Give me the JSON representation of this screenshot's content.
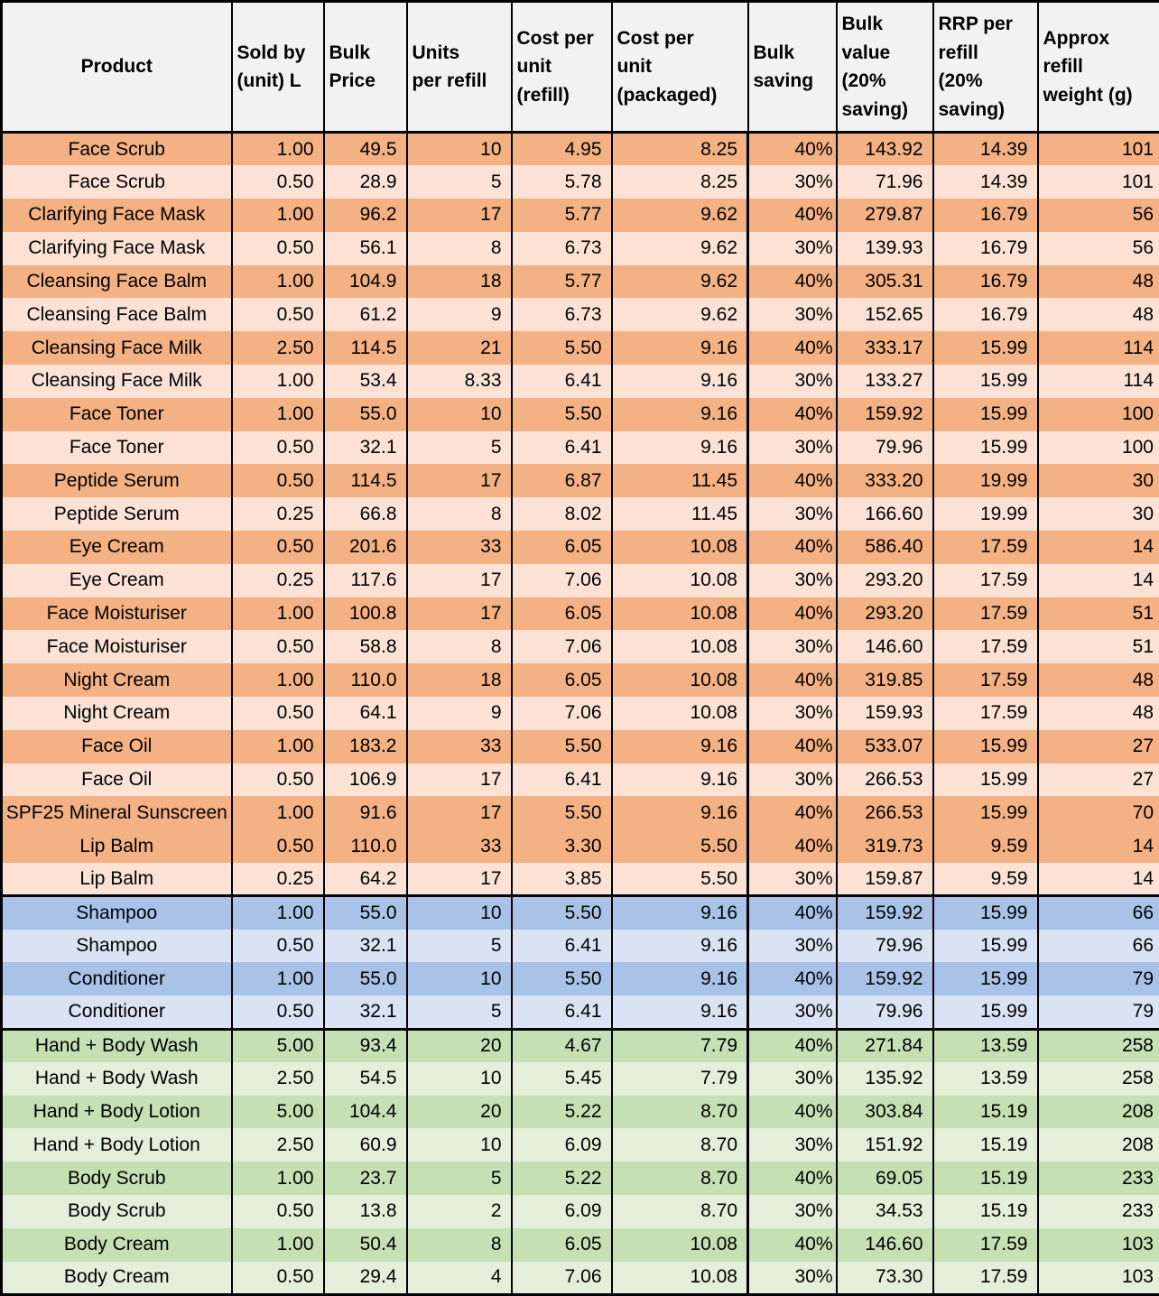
{
  "table": {
    "headers": [
      "Product",
      "Sold by\n(unit) L",
      "Bulk\nPrice",
      "Units\nper refill",
      "Cost per\nunit\n(refill)",
      "Cost per\nunit\n(packaged)",
      "Bulk\nsaving",
      "Bulk\nvalue\n(20%\nsaving)",
      "RRP per\nrefill\n(20%\nsaving)",
      "Approx\nrefill\nweight (g)"
    ],
    "column_keys": [
      "product",
      "sold-by-unit-l",
      "bulk-price",
      "units-per-refill",
      "cost-per-unit-refill",
      "cost-per-unit-packaged",
      "bulk-saving",
      "bulk-value-20-saving",
      "rrp-per-refill-20-saving",
      "approx-refill-weight-g"
    ],
    "colors": {
      "header_bg": "#F2F2F2",
      "border": "#000000",
      "text": "#000000"
    },
    "sections": [
      {
        "name": "face-care",
        "row_color_primary": "#F4B183",
        "row_color_alternate": "#FBE2D5",
        "rows": [
          [
            "Face Scrub",
            "1.00",
            "49.5",
            "10",
            "4.95",
            "8.25",
            "40%",
            "143.92",
            "14.39",
            "101"
          ],
          [
            "Face Scrub",
            "0.50",
            "28.9",
            "5",
            "5.78",
            "8.25",
            "30%",
            "71.96",
            "14.39",
            "101"
          ],
          [
            "Clarifying Face Mask",
            "1.00",
            "96.2",
            "17",
            "5.77",
            "9.62",
            "40%",
            "279.87",
            "16.79",
            "56"
          ],
          [
            "Clarifying Face Mask",
            "0.50",
            "56.1",
            "8",
            "6.73",
            "9.62",
            "30%",
            "139.93",
            "16.79",
            "56"
          ],
          [
            "Cleansing Face Balm",
            "1.00",
            "104.9",
            "18",
            "5.77",
            "9.62",
            "40%",
            "305.31",
            "16.79",
            "48"
          ],
          [
            "Cleansing Face Balm",
            "0.50",
            "61.2",
            "9",
            "6.73",
            "9.62",
            "30%",
            "152.65",
            "16.79",
            "48"
          ],
          [
            "Cleansing Face Milk",
            "2.50",
            "114.5",
            "21",
            "5.50",
            "9.16",
            "40%",
            "333.17",
            "15.99",
            "114"
          ],
          [
            "Cleansing Face Milk",
            "1.00",
            "53.4",
            "8.33",
            "6.41",
            "9.16",
            "30%",
            "133.27",
            "15.99",
            "114"
          ],
          [
            "Face Toner",
            "1.00",
            "55.0",
            "10",
            "5.50",
            "9.16",
            "40%",
            "159.92",
            "15.99",
            "100"
          ],
          [
            "Face Toner",
            "0.50",
            "32.1",
            "5",
            "6.41",
            "9.16",
            "30%",
            "79.96",
            "15.99",
            "100"
          ],
          [
            "Peptide Serum",
            "0.50",
            "114.5",
            "17",
            "6.87",
            "11.45",
            "40%",
            "333.20",
            "19.99",
            "30"
          ],
          [
            "Peptide Serum",
            "0.25",
            "66.8",
            "8",
            "8.02",
            "11.45",
            "30%",
            "166.60",
            "19.99",
            "30"
          ],
          [
            "Eye Cream",
            "0.50",
            "201.6",
            "33",
            "6.05",
            "10.08",
            "40%",
            "586.40",
            "17.59",
            "14"
          ],
          [
            "Eye Cream",
            "0.25",
            "117.6",
            "17",
            "7.06",
            "10.08",
            "30%",
            "293.20",
            "17.59",
            "14"
          ],
          [
            "Face Moisturiser",
            "1.00",
            "100.8",
            "17",
            "6.05",
            "10.08",
            "40%",
            "293.20",
            "17.59",
            "51"
          ],
          [
            "Face Moisturiser",
            "0.50",
            "58.8",
            "8",
            "7.06",
            "10.08",
            "30%",
            "146.60",
            "17.59",
            "51"
          ],
          [
            "Night Cream",
            "1.00",
            "110.0",
            "18",
            "6.05",
            "10.08",
            "40%",
            "319.85",
            "17.59",
            "48"
          ],
          [
            "Night Cream",
            "0.50",
            "64.1",
            "9",
            "7.06",
            "10.08",
            "30%",
            "159.93",
            "17.59",
            "48"
          ],
          [
            "Face Oil",
            "1.00",
            "183.2",
            "33",
            "5.50",
            "9.16",
            "40%",
            "533.07",
            "15.99",
            "27"
          ],
          [
            "Face Oil",
            "0.50",
            "106.9",
            "17",
            "6.41",
            "9.16",
            "30%",
            "266.53",
            "15.99",
            "27"
          ],
          [
            "SPF25 Mineral Sunscreen",
            "1.00",
            "91.6",
            "17",
            "5.50",
            "9.16",
            "40%",
            "266.53",
            "15.99",
            "70"
          ],
          [
            "Lip Balm",
            "0.50",
            "110.0",
            "33",
            "3.30",
            "5.50",
            "40%",
            "319.73",
            "9.59",
            "14"
          ],
          [
            "Lip Balm",
            "0.25",
            "64.2",
            "17",
            "3.85",
            "5.50",
            "30%",
            "159.87",
            "9.59",
            "14"
          ]
        ]
      },
      {
        "name": "hair-care",
        "row_color_primary": "#A9C2E8",
        "row_color_alternate": "#DAE3F3",
        "rows": [
          [
            "Shampoo",
            "1.00",
            "55.0",
            "10",
            "5.50",
            "9.16",
            "40%",
            "159.92",
            "15.99",
            "66"
          ],
          [
            "Shampoo",
            "0.50",
            "32.1",
            "5",
            "6.41",
            "9.16",
            "30%",
            "79.96",
            "15.99",
            "66"
          ],
          [
            "Conditioner",
            "1.00",
            "55.0",
            "10",
            "5.50",
            "9.16",
            "40%",
            "159.92",
            "15.99",
            "79"
          ],
          [
            "Conditioner",
            "0.50",
            "32.1",
            "5",
            "6.41",
            "9.16",
            "30%",
            "79.96",
            "15.99",
            "79"
          ]
        ]
      },
      {
        "name": "body-care",
        "row_color_primary": "#C6E0B4",
        "row_color_alternate": "#E3EFDA",
        "rows": [
          [
            "Hand + Body Wash",
            "5.00",
            "93.4",
            "20",
            "4.67",
            "7.79",
            "40%",
            "271.84",
            "13.59",
            "258"
          ],
          [
            "Hand + Body Wash",
            "2.50",
            "54.5",
            "10",
            "5.45",
            "7.79",
            "30%",
            "135.92",
            "13.59",
            "258"
          ],
          [
            "Hand + Body Lotion",
            "5.00",
            "104.4",
            "20",
            "5.22",
            "8.70",
            "40%",
            "303.84",
            "15.19",
            "208"
          ],
          [
            "Hand + Body Lotion",
            "2.50",
            "60.9",
            "10",
            "6.09",
            "8.70",
            "30%",
            "151.92",
            "15.19",
            "208"
          ],
          [
            "Body Scrub",
            "1.00",
            "23.7",
            "5",
            "5.22",
            "8.70",
            "40%",
            "69.05",
            "15.19",
            "233"
          ],
          [
            "Body Scrub",
            "0.50",
            "13.8",
            "2",
            "6.09",
            "8.70",
            "30%",
            "34.53",
            "15.19",
            "233"
          ],
          [
            "Body Cream",
            "1.00",
            "50.4",
            "8",
            "6.05",
            "10.08",
            "40%",
            "146.60",
            "17.59",
            "103"
          ],
          [
            "Body Cream",
            "0.50",
            "29.4",
            "4",
            "7.06",
            "10.08",
            "30%",
            "73.30",
            "17.59",
            "103"
          ]
        ]
      }
    ]
  }
}
